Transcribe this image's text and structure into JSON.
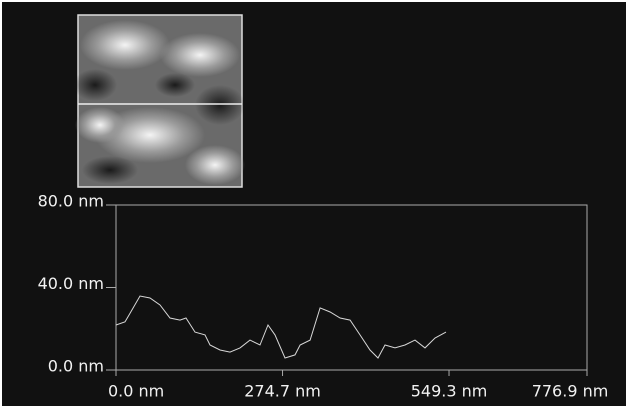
{
  "chart_data": {
    "type": "line",
    "x": [
      0,
      14.8,
      39.6,
      56.1,
      72.6,
      89.1,
      105.6,
      115.5,
      130.3,
      146.8,
      155.1,
      171.6,
      188.1,
      204.6,
      221.1,
      237.6,
      250.8,
      262.3,
      278.8,
      295.3,
      303.6,
      320.1,
      336.6,
      353.1,
      369.6,
      386.1,
      402.5,
      419.0,
      432.2,
      443.7,
      460.2,
      476.7,
      493.2,
      509.7,
      526.2,
      544.3
    ],
    "values": [
      21.8,
      23.3,
      35.9,
      34.9,
      31.5,
      25.2,
      24.2,
      25.2,
      18.4,
      17.0,
      12.1,
      9.7,
      8.7,
      10.7,
      14.5,
      12.1,
      21.8,
      17.0,
      5.8,
      7.3,
      12.1,
      14.5,
      30.1,
      28.1,
      25.2,
      24.2,
      17.0,
      9.7,
      5.8,
      12.1,
      10.7,
      12.1,
      14.5,
      10.7,
      15.5,
      18.4
    ],
    "color": "#d8d8d8",
    "xlim": [
      0,
      776.9
    ],
    "xticks": [
      {
        "value": 0,
        "label": "0.0 nm"
      },
      {
        "value": 274.7,
        "label": "274.7 nm"
      },
      {
        "value": 549.3,
        "label": "549.3 nm"
      },
      {
        "value": 776.9,
        "label": "776.9 nm"
      }
    ],
    "ylim": [
      0,
      80
    ],
    "yticks": [
      {
        "value": 0,
        "label": "0.0 nm"
      },
      {
        "value": 40,
        "label": "40.0 nm"
      },
      {
        "value": 80,
        "label": "80.0 nm"
      }
    ]
  }
}
